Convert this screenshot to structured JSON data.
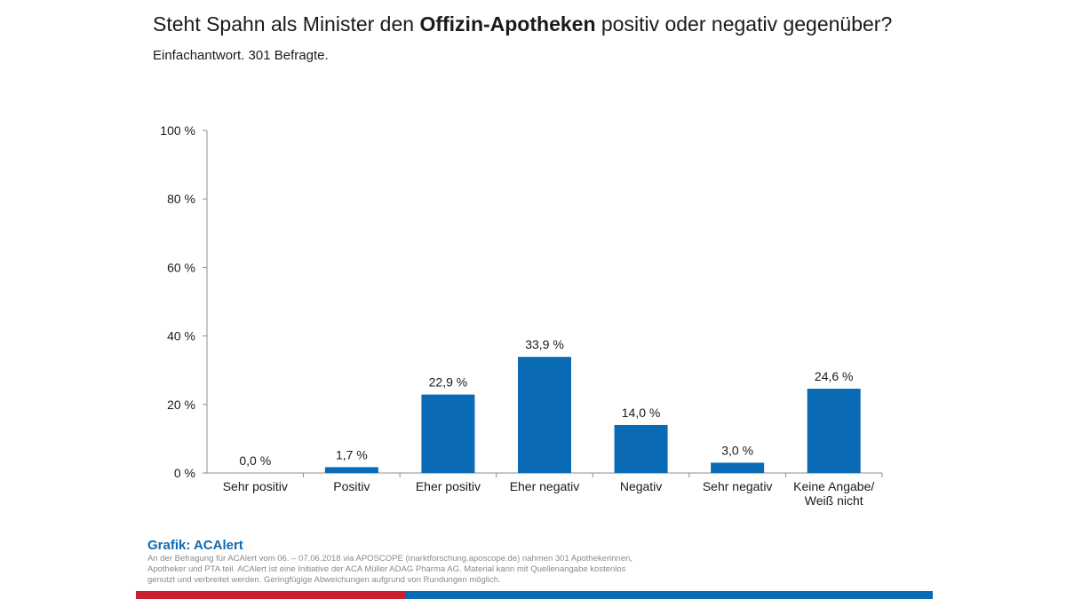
{
  "header": {
    "title_pre": "Steht Spahn als Minister den ",
    "title_bold": "Offizin-Apotheken",
    "title_post": " positiv oder negativ gegenüber?",
    "subtitle": "Einfachantwort. 301 Befragte."
  },
  "chart_data": {
    "type": "bar",
    "categories": [
      "Sehr positiv",
      "Positiv",
      "Eher positiv",
      "Eher negativ",
      "Negativ",
      "Sehr negativ",
      "Keine Angabe/\nWeiß nicht"
    ],
    "values": [
      0.0,
      1.7,
      22.9,
      33.9,
      14.0,
      3.0,
      24.6
    ],
    "value_labels": [
      "0,0 %",
      "1,7 %",
      "22,9 %",
      "33,9 %",
      "14,0 %",
      "3,0 %",
      "24,6 %"
    ],
    "yticks": [
      0,
      20,
      40,
      60,
      80,
      100
    ],
    "ytick_labels": [
      "0 %",
      "20 %",
      "40 %",
      "60 %",
      "80 %",
      "100 %"
    ],
    "ylim": [
      0,
      100
    ],
    "bar_color": "#0a6ab3",
    "grid": false
  },
  "footer": {
    "credit": "Grafik: ACAlert",
    "note": "An der Befragung für ACAlert vom 06. – 07.06.2018 via APOSCOPE (marktforschung.aposcope.de) nahmen 301 Apothekerinnen, Apotheker und PTA teil. ACAlert ist eine Initiative der ACA Müller ADAG Pharma AG. Material kann mit Quellenangabe kostenlos genutzt und verbreitet werden. Geringfügige Abweichungen aufgrund von Rundungen möglich.",
    "band_colors": [
      "#c8202f",
      "#0a6ab3"
    ]
  }
}
